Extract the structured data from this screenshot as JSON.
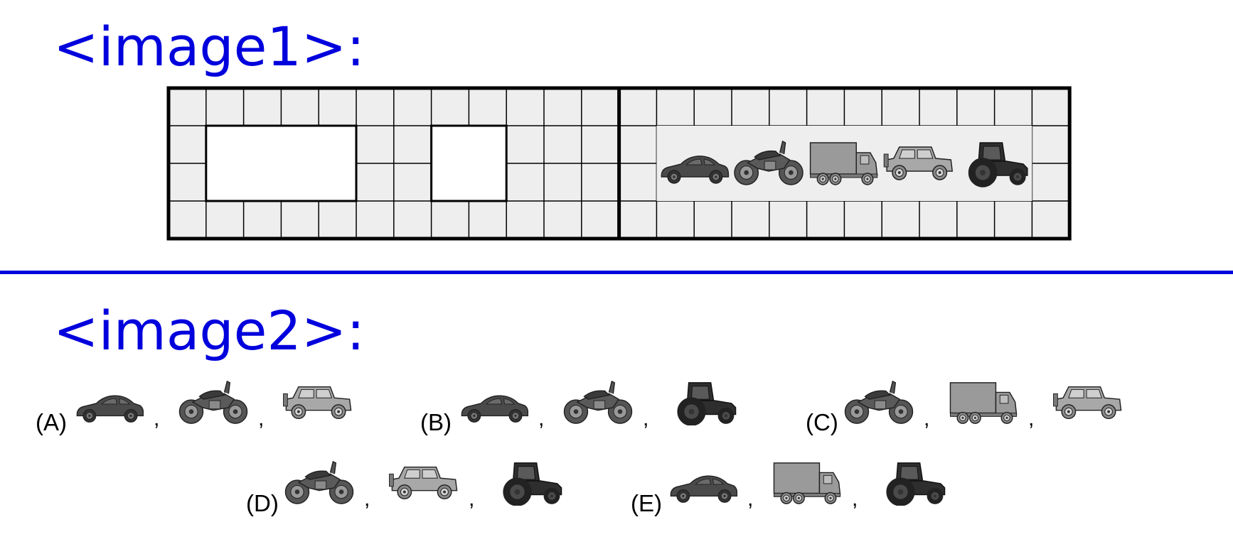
{
  "headings": {
    "image1": "<image1>:",
    "image2": "<image2>:"
  },
  "puzzle": {
    "left_blank_slots": 2,
    "sequence": [
      "car",
      "motorcycle",
      "truck",
      "jeep",
      "tractor"
    ]
  },
  "options": [
    {
      "label": "(A)",
      "items": [
        "car",
        "motorcycle",
        "jeep"
      ]
    },
    {
      "label": "(B)",
      "items": [
        "car",
        "motorcycle",
        "tractor"
      ]
    },
    {
      "label": "(C)",
      "items": [
        "motorcycle",
        "truck",
        "jeep"
      ]
    },
    {
      "label": "(D)",
      "items": [
        "motorcycle",
        "jeep",
        "tractor"
      ]
    },
    {
      "label": "(E)",
      "items": [
        "car",
        "truck",
        "tractor"
      ]
    }
  ],
  "separator": ",",
  "colors": {
    "heading": "#0000dd",
    "cell_fill": "#eeeeee",
    "grid_line": "#000000",
    "dark_vehicle": "#4a4a4a",
    "light_vehicle": "#9a9a9a"
  }
}
